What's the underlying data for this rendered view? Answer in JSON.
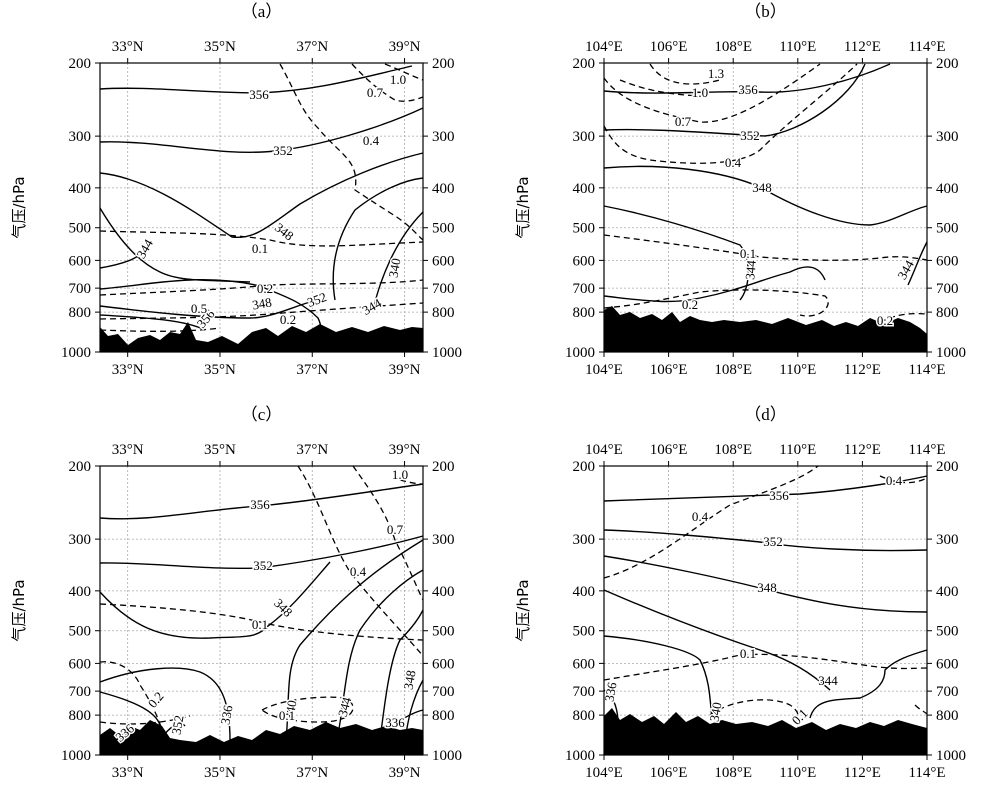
{
  "chart_data": [
    {
      "type": "contour",
      "panel_label": "（a）",
      "x_ticks": [
        "33°N",
        "35°N",
        "37°N",
        "39°N"
      ],
      "x_tick_values": [
        33,
        35,
        37,
        39
      ],
      "x_range": [
        32.4,
        39.4
      ],
      "y_ticks": [
        "200",
        "300",
        "400",
        "500",
        "600",
        "700",
        "800",
        "1000"
      ],
      "y_tick_values": [
        200,
        300,
        400,
        500,
        600,
        700,
        800,
        1000
      ],
      "ylabel": "气压/hPa",
      "solid_labels": [
        "356",
        "352",
        "348",
        "344",
        "340",
        "352",
        "348",
        "356",
        "344"
      ],
      "dashed_labels": [
        "1.0",
        "0.7",
        "0.4",
        "0.1",
        "0.2",
        "0.5",
        "0.2"
      ],
      "terrain": "filled-black"
    },
    {
      "type": "contour",
      "panel_label": "（b）",
      "x_ticks": [
        "104°E",
        "106°E",
        "108°E",
        "110°E",
        "112°E",
        "114°E"
      ],
      "x_tick_values": [
        104,
        106,
        108,
        110,
        112,
        114
      ],
      "x_range": [
        104,
        114
      ],
      "y_ticks": [
        "200",
        "300",
        "400",
        "500",
        "600",
        "700",
        "800",
        "1000"
      ],
      "y_tick_values": [
        200,
        300,
        400,
        500,
        600,
        700,
        800,
        1000
      ],
      "ylabel": "气压/hPa",
      "solid_labels": [
        "356",
        "352",
        "348",
        "344",
        "344"
      ],
      "dashed_labels": [
        "1.3",
        "1.0",
        "0.7",
        "0.4",
        "0.1",
        "0.2",
        "0.2"
      ],
      "terrain": "filled-black"
    },
    {
      "type": "contour",
      "panel_label": "（c）",
      "x_ticks": [
        "33°N",
        "35°N",
        "37°N",
        "39°N"
      ],
      "x_tick_values": [
        33,
        35,
        37,
        39
      ],
      "x_range": [
        32.4,
        39.4
      ],
      "y_ticks": [
        "200",
        "300",
        "400",
        "500",
        "600",
        "700",
        "800",
        "1000"
      ],
      "y_tick_values": [
        200,
        300,
        400,
        500,
        600,
        700,
        800,
        1000
      ],
      "ylabel": "气压/hPa",
      "solid_labels": [
        "356",
        "352",
        "348",
        "348",
        "344",
        "340",
        "336",
        "336",
        "352",
        "336"
      ],
      "dashed_labels": [
        "1.0",
        "0.7",
        "0.4",
        "0.1",
        "0.2",
        "0.1"
      ],
      "terrain": "filled-black"
    },
    {
      "type": "contour",
      "panel_label": "（d）",
      "x_ticks": [
        "104°E",
        "106°E",
        "108°E",
        "110°E",
        "112°E",
        "114°E"
      ],
      "x_tick_values": [
        104,
        106,
        108,
        110,
        112,
        114
      ],
      "x_range": [
        104,
        114
      ],
      "y_ticks": [
        "200",
        "300",
        "400",
        "500",
        "600",
        "700",
        "800",
        "1000"
      ],
      "y_tick_values": [
        200,
        300,
        400,
        500,
        600,
        700,
        800,
        1000
      ],
      "ylabel": "气压/hPa",
      "solid_labels": [
        "356",
        "352",
        "348",
        "344",
        "340",
        "336"
      ],
      "dashed_labels": [
        "0.4",
        "0.4",
        "0.1",
        "0.1"
      ],
      "terrain": "filled-black"
    }
  ]
}
